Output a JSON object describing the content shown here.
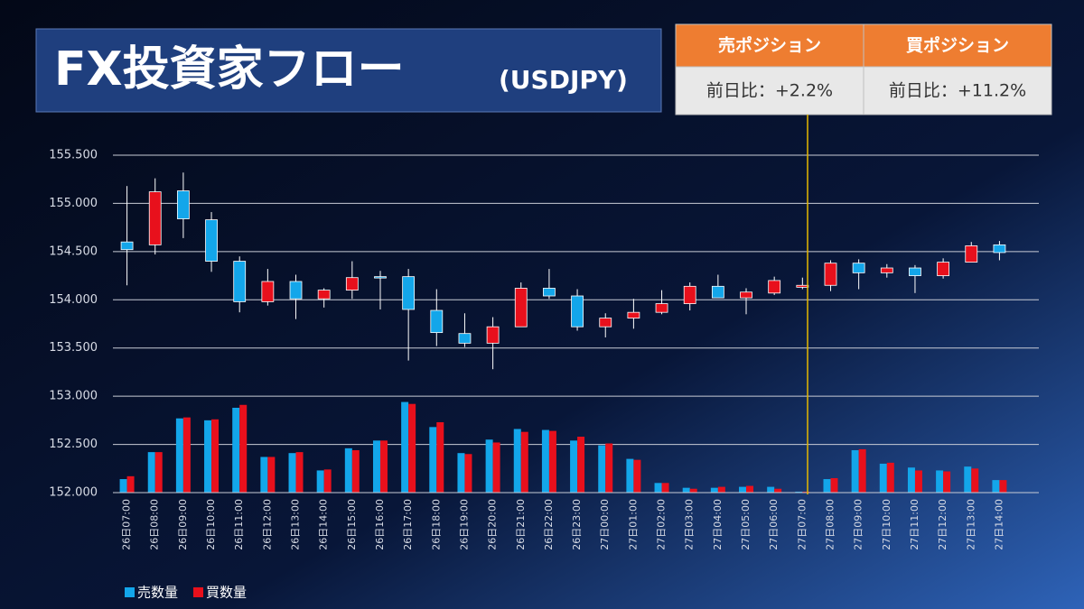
{
  "chart_data": {
    "type": "candlestick",
    "title": "FX投資家フロー",
    "subtitle": "(USDJPY)",
    "categories": [
      "26日07:00",
      "26日08:00",
      "26日09:00",
      "26日10:00",
      "26日11:00",
      "26日12:00",
      "26日13:00",
      "26日14:00",
      "26日15:00",
      "26日16:00",
      "26日17:00",
      "26日18:00",
      "26日19:00",
      "26日20:00",
      "26日21:00",
      "26日22:00",
      "26日23:00",
      "27日00:00",
      "27日01:00",
      "27日02:00",
      "27日03:00",
      "27日04:00",
      "27日05:00",
      "27日06:00",
      "27日07:00",
      "27日08:00",
      "27日09:00",
      "27日10:00",
      "27日11:00",
      "27日12:00",
      "27日13:00",
      "27日14:00"
    ],
    "open": [
      154.6,
      154.57,
      155.13,
      154.83,
      154.4,
      153.98,
      154.19,
      154.01,
      154.1,
      154.24,
      154.24,
      153.89,
      153.65,
      153.55,
      153.72,
      154.12,
      154.04,
      153.72,
      153.81,
      153.87,
      153.96,
      154.14,
      154.02,
      154.07,
      154.13,
      154.15,
      154.38,
      154.28,
      154.33,
      154.25,
      154.39,
      154.57
    ],
    "high": [
      155.18,
      155.26,
      155.32,
      154.91,
      154.45,
      154.32,
      154.26,
      154.12,
      154.4,
      154.3,
      154.32,
      154.11,
      153.86,
      153.82,
      154.18,
      154.32,
      154.11,
      153.86,
      154.01,
      154.1,
      154.18,
      154.26,
      154.12,
      154.24,
      154.23,
      154.41,
      154.42,
      154.37,
      154.36,
      154.43,
      154.6,
      154.61
    ],
    "low": [
      154.15,
      154.47,
      154.64,
      154.29,
      153.87,
      153.94,
      153.8,
      153.92,
      154.01,
      153.9,
      153.37,
      153.52,
      153.51,
      153.28,
      153.72,
      154.01,
      153.68,
      153.61,
      153.7,
      153.85,
      153.89,
      154.02,
      153.85,
      154.05,
      154.11,
      154.09,
      154.11,
      154.23,
      154.07,
      154.22,
      154.39,
      154.41
    ],
    "close": [
      154.52,
      155.12,
      154.84,
      154.4,
      153.98,
      154.19,
      154.01,
      154.1,
      154.23,
      154.23,
      153.9,
      153.66,
      153.55,
      153.72,
      154.12,
      154.04,
      153.72,
      153.81,
      153.87,
      153.96,
      154.14,
      154.02,
      154.08,
      154.2,
      154.15,
      154.38,
      154.28,
      154.33,
      154.25,
      154.39,
      154.56,
      154.49
    ],
    "up_color": "#e8101c",
    "down_color": "#13a6ea",
    "series": [
      {
        "name": "売数量",
        "color": "#13a6ea",
        "values": [
          152.14,
          152.42,
          152.77,
          152.75,
          152.88,
          152.37,
          152.41,
          152.23,
          152.46,
          152.54,
          152.94,
          152.68,
          152.41,
          152.55,
          152.66,
          152.65,
          152.54,
          152.49,
          152.35,
          152.1,
          152.05,
          152.05,
          152.06,
          152.06,
          152.01,
          152.14,
          152.44,
          152.3,
          152.26,
          152.23,
          152.27,
          152.13
        ]
      },
      {
        "name": "買数量",
        "color": "#e8101c",
        "values": [
          152.17,
          152.42,
          152.78,
          152.76,
          152.91,
          152.37,
          152.42,
          152.24,
          152.44,
          152.54,
          152.92,
          152.73,
          152.4,
          152.52,
          152.63,
          152.64,
          152.58,
          152.51,
          152.34,
          152.1,
          152.04,
          152.06,
          152.07,
          152.04,
          152.01,
          152.15,
          152.45,
          152.31,
          152.23,
          152.22,
          152.25,
          152.13
        ]
      }
    ],
    "ylim": [
      152,
      155.5
    ],
    "yticks": [
      {
        "value": 152,
        "label": "152.000"
      },
      {
        "value": 152.5,
        "label": "152.500"
      },
      {
        "value": 153,
        "label": "153.000"
      },
      {
        "value": 153.5,
        "label": "153.500"
      },
      {
        "value": 154,
        "label": "154.000"
      },
      {
        "value": 154.5,
        "label": "154.500"
      },
      {
        "value": 155,
        "label": "155.000"
      },
      {
        "value": 155.5,
        "label": "155.500"
      }
    ],
    "grid": true,
    "legend": "bottom-left"
  },
  "position_table": {
    "headers": [
      "売ポジション",
      "買ポジション"
    ],
    "rows": [
      [
        "前日比：+2.2%",
        "前日比：+11.2%"
      ]
    ]
  }
}
